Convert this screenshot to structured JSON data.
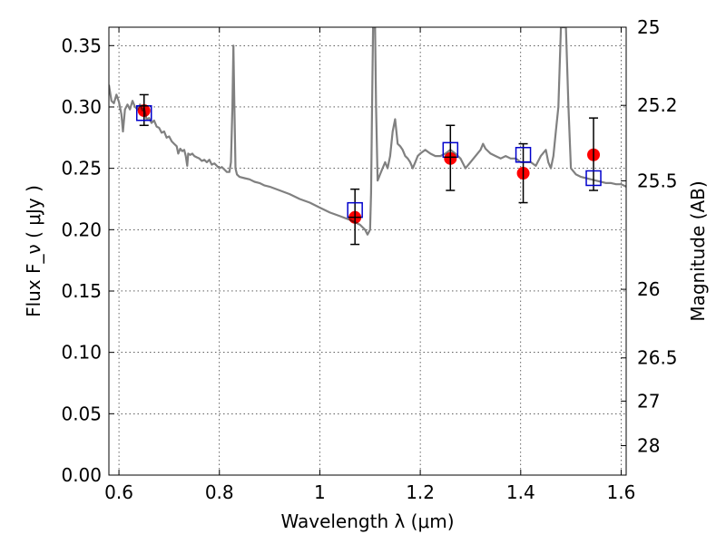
{
  "chart_data": {
    "type": "scatter",
    "xlabel": "Wavelength λ (μm)",
    "ylabel": "Flux F_ν ( μJy )",
    "ylabel_right": "Magnitude (AB)",
    "xlim": [
      0.58,
      1.61
    ],
    "ylim": [
      0.0,
      0.365
    ],
    "grid": true,
    "x_ticks": [
      0.6,
      0.8,
      1.0,
      1.2,
      1.4,
      1.6
    ],
    "x_tick_labels": [
      "0.6",
      "0.8",
      "1",
      "1.2",
      "1.4",
      "1.6"
    ],
    "y_ticks": [
      0.0,
      0.05,
      0.1,
      0.15,
      0.2,
      0.25,
      0.3,
      0.35
    ],
    "y_tick_labels": [
      "0.00",
      "0.05",
      "0.10",
      "0.15",
      "0.20",
      "0.25",
      "0.30",
      "0.35"
    ],
    "right_ticks": [
      {
        "flux": 0.365,
        "label": "25"
      },
      {
        "flux": 0.3013,
        "label": "25.2"
      },
      {
        "flux": 0.2398,
        "label": "25.5"
      },
      {
        "flux": 0.1514,
        "label": "26"
      },
      {
        "flux": 0.0955,
        "label": "26.5"
      },
      {
        "flux": 0.0603,
        "label": "27"
      },
      {
        "flux": 0.024,
        "label": "28"
      }
    ],
    "series": [
      {
        "kind": "model-spectrum",
        "color": "#808080",
        "points": [
          [
            0.58,
            0.318
          ],
          [
            0.585,
            0.305
          ],
          [
            0.59,
            0.303
          ],
          [
            0.595,
            0.31
          ],
          [
            0.6,
            0.304
          ],
          [
            0.605,
            0.294
          ],
          [
            0.608,
            0.28
          ],
          [
            0.612,
            0.298
          ],
          [
            0.617,
            0.302
          ],
          [
            0.622,
            0.298
          ],
          [
            0.627,
            0.305
          ],
          [
            0.632,
            0.3
          ],
          [
            0.637,
            0.298
          ],
          [
            0.642,
            0.302
          ],
          [
            0.647,
            0.297
          ],
          [
            0.65,
            0.299
          ],
          [
            0.655,
            0.29
          ],
          [
            0.66,
            0.291
          ],
          [
            0.665,
            0.287
          ],
          [
            0.67,
            0.289
          ],
          [
            0.675,
            0.284
          ],
          [
            0.68,
            0.283
          ],
          [
            0.685,
            0.279
          ],
          [
            0.69,
            0.28
          ],
          [
            0.695,
            0.275
          ],
          [
            0.7,
            0.276
          ],
          [
            0.705,
            0.272
          ],
          [
            0.71,
            0.27
          ],
          [
            0.715,
            0.268
          ],
          [
            0.718,
            0.262
          ],
          [
            0.722,
            0.266
          ],
          [
            0.726,
            0.264
          ],
          [
            0.73,
            0.265
          ],
          [
            0.733,
            0.26
          ],
          [
            0.736,
            0.252
          ],
          [
            0.738,
            0.262
          ],
          [
            0.742,
            0.261
          ],
          [
            0.746,
            0.262
          ],
          [
            0.75,
            0.26
          ],
          [
            0.755,
            0.259
          ],
          [
            0.76,
            0.258
          ],
          [
            0.765,
            0.256
          ],
          [
            0.77,
            0.257
          ],
          [
            0.775,
            0.255
          ],
          [
            0.78,
            0.257
          ],
          [
            0.785,
            0.253
          ],
          [
            0.79,
            0.254
          ],
          [
            0.795,
            0.252
          ],
          [
            0.8,
            0.25
          ],
          [
            0.805,
            0.251
          ],
          [
            0.81,
            0.249
          ],
          [
            0.815,
            0.247
          ],
          [
            0.82,
            0.247
          ],
          [
            0.823,
            0.255
          ],
          [
            0.826,
            0.3
          ],
          [
            0.828,
            0.35
          ],
          [
            0.83,
            0.3
          ],
          [
            0.832,
            0.25
          ],
          [
            0.835,
            0.245
          ],
          [
            0.84,
            0.243
          ],
          [
            0.85,
            0.242
          ],
          [
            0.86,
            0.241
          ],
          [
            0.87,
            0.239
          ],
          [
            0.88,
            0.238
          ],
          [
            0.89,
            0.236
          ],
          [
            0.9,
            0.235
          ],
          [
            0.92,
            0.232
          ],
          [
            0.94,
            0.229
          ],
          [
            0.96,
            0.225
          ],
          [
            0.98,
            0.222
          ],
          [
            1.0,
            0.218
          ],
          [
            1.02,
            0.214
          ],
          [
            1.04,
            0.211
          ],
          [
            1.06,
            0.208
          ],
          [
            1.08,
            0.204
          ],
          [
            1.09,
            0.2
          ],
          [
            1.095,
            0.196
          ],
          [
            1.1,
            0.2
          ],
          [
            1.102,
            0.23
          ],
          [
            1.104,
            0.3
          ],
          [
            1.106,
            0.365
          ],
          [
            1.11,
            0.365
          ],
          [
            1.112,
            0.3
          ],
          [
            1.115,
            0.24
          ],
          [
            1.12,
            0.245
          ],
          [
            1.125,
            0.25
          ],
          [
            1.13,
            0.255
          ],
          [
            1.135,
            0.25
          ],
          [
            1.14,
            0.26
          ],
          [
            1.145,
            0.28
          ],
          [
            1.15,
            0.29
          ],
          [
            1.155,
            0.27
          ],
          [
            1.16,
            0.268
          ],
          [
            1.165,
            0.265
          ],
          [
            1.17,
            0.26
          ],
          [
            1.175,
            0.258
          ],
          [
            1.18,
            0.255
          ],
          [
            1.185,
            0.25
          ],
          [
            1.19,
            0.255
          ],
          [
            1.195,
            0.26
          ],
          [
            1.2,
            0.262
          ],
          [
            1.21,
            0.265
          ],
          [
            1.22,
            0.262
          ],
          [
            1.23,
            0.26
          ],
          [
            1.24,
            0.26
          ],
          [
            1.25,
            0.262
          ],
          [
            1.26,
            0.265
          ],
          [
            1.27,
            0.262
          ],
          [
            1.28,
            0.258
          ],
          [
            1.29,
            0.25
          ],
          [
            1.3,
            0.255
          ],
          [
            1.31,
            0.26
          ],
          [
            1.32,
            0.265
          ],
          [
            1.325,
            0.27
          ],
          [
            1.33,
            0.266
          ],
          [
            1.34,
            0.262
          ],
          [
            1.35,
            0.26
          ],
          [
            1.36,
            0.258
          ],
          [
            1.37,
            0.26
          ],
          [
            1.38,
            0.258
          ],
          [
            1.39,
            0.258
          ],
          [
            1.4,
            0.255
          ],
          [
            1.41,
            0.255
          ],
          [
            1.42,
            0.255
          ],
          [
            1.43,
            0.252
          ],
          [
            1.44,
            0.26
          ],
          [
            1.45,
            0.265
          ],
          [
            1.455,
            0.255
          ],
          [
            1.46,
            0.25
          ],
          [
            1.465,
            0.26
          ],
          [
            1.47,
            0.28
          ],
          [
            1.475,
            0.3
          ],
          [
            1.48,
            0.365
          ],
          [
            1.49,
            0.365
          ],
          [
            1.495,
            0.3
          ],
          [
            1.5,
            0.25
          ],
          [
            1.51,
            0.245
          ],
          [
            1.52,
            0.243
          ],
          [
            1.53,
            0.242
          ],
          [
            1.54,
            0.241
          ],
          [
            1.55,
            0.24
          ],
          [
            1.56,
            0.239
          ],
          [
            1.57,
            0.238
          ],
          [
            1.58,
            0.238
          ],
          [
            1.59,
            0.237
          ],
          [
            1.6,
            0.237
          ],
          [
            1.61,
            0.235
          ]
        ]
      },
      {
        "kind": "observed-flux-with-errors",
        "color": "#ff0000",
        "points": [
          {
            "x": 0.65,
            "y": 0.297,
            "yerr_lo": 0.285,
            "yerr_hi": 0.31
          },
          {
            "x": 1.07,
            "y": 0.21,
            "yerr_lo": 0.188,
            "yerr_hi": 0.233
          },
          {
            "x": 1.26,
            "y": 0.258,
            "yerr_lo": 0.232,
            "yerr_hi": 0.285
          },
          {
            "x": 1.405,
            "y": 0.246,
            "yerr_lo": 0.222,
            "yerr_hi": 0.27
          },
          {
            "x": 1.545,
            "y": 0.261,
            "yerr_lo": 0.232,
            "yerr_hi": 0.291
          }
        ]
      },
      {
        "kind": "model-band-flux",
        "color": "#0000cc",
        "points": [
          {
            "x": 0.65,
            "y": 0.295
          },
          {
            "x": 1.07,
            "y": 0.216
          },
          {
            "x": 1.26,
            "y": 0.265
          },
          {
            "x": 1.405,
            "y": 0.261
          },
          {
            "x": 1.545,
            "y": 0.242
          }
        ]
      }
    ]
  }
}
